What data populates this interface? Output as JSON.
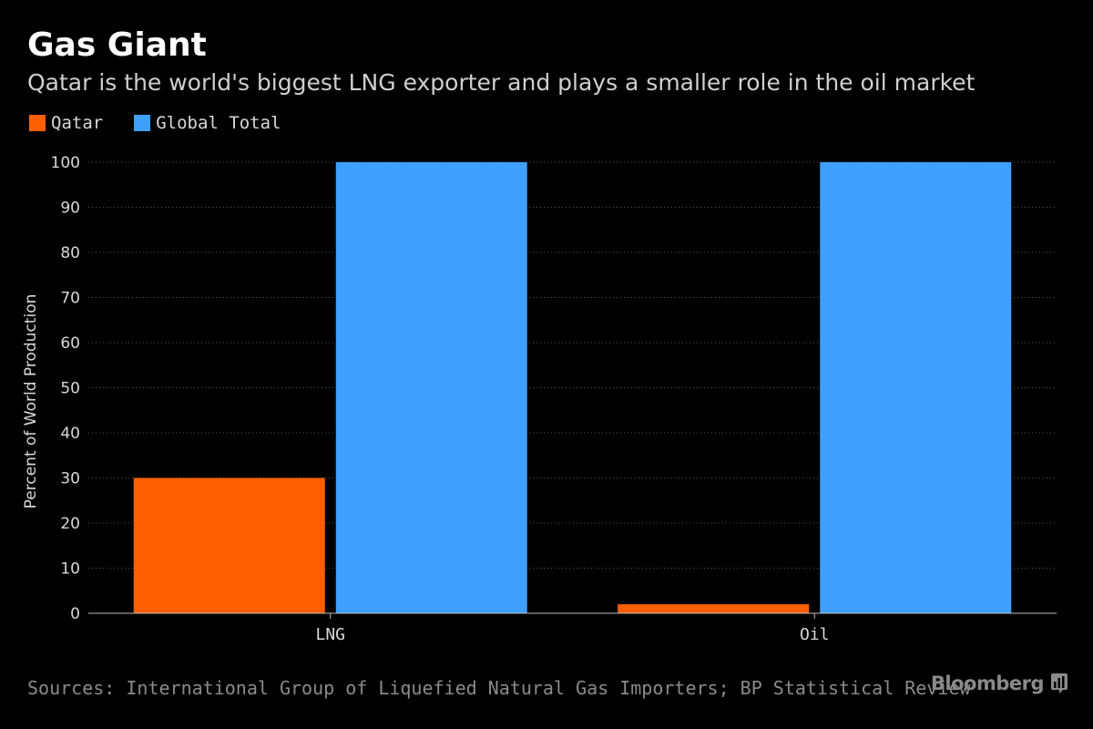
{
  "header": {
    "title": "Gas Giant",
    "subtitle": "Qatar is the world's biggest LNG exporter and plays a smaller role in the oil market"
  },
  "footer": {
    "source": "Sources: International Group of Liquefied Natural Gas Importers; BP Statistical Review",
    "brand": "Bloomberg",
    "brand_icon": "bar-chart-icon"
  },
  "colors": {
    "background": "#000000",
    "qatar": "#ff5f00",
    "global_total": "#3fa0ff",
    "gridline": "#555555",
    "axis": "#bbbbbb",
    "text": "#d8d8d8",
    "muted": "#8a8a8a"
  },
  "chart_data": {
    "type": "bar",
    "title": "Gas Giant",
    "subtitle": "Qatar is the world's biggest LNG exporter and plays a smaller role in the oil market",
    "categories": [
      "LNG",
      "Oil"
    ],
    "series": [
      {
        "name": "Qatar",
        "values": [
          30,
          2
        ],
        "color": "#ff5f00"
      },
      {
        "name": "Global Total",
        "values": [
          100,
          100
        ],
        "color": "#3fa0ff"
      }
    ],
    "xlabel": "",
    "ylabel": "Percent of World Production",
    "ylim": [
      0,
      100
    ],
    "yticks": [
      0,
      10,
      20,
      30,
      40,
      50,
      60,
      70,
      80,
      90,
      100
    ],
    "grid": true,
    "legend_position": "top-left"
  }
}
